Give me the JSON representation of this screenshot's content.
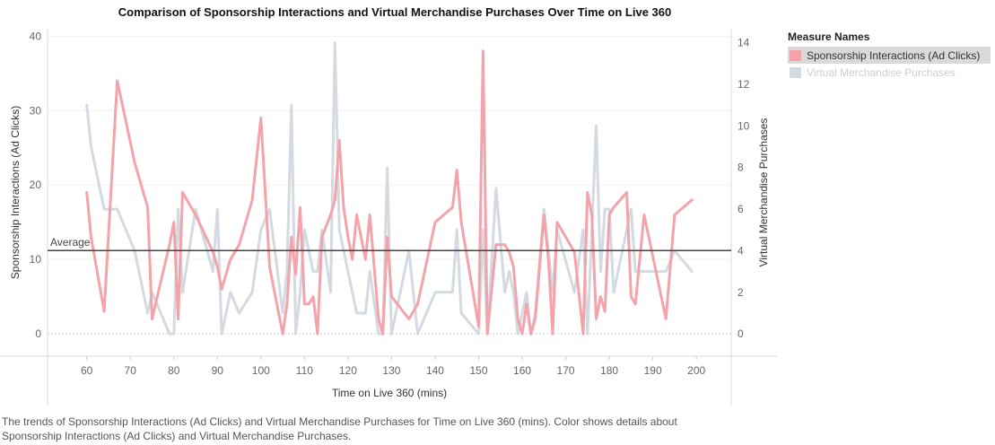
{
  "title": "Comparison of Sponsorship Interactions and Virtual Merchandise Purchases Over Time on Live 360",
  "caption": "The trends of Sponsorship Interactions (Ad Clicks) and Virtual Merchandise Purchases for Time on Live 360 (mins).  Color shows details about Sponsorship Interactions (Ad Clicks) and Virtual Merchandise Purchases.",
  "legend": {
    "title": "Measure Names",
    "items": [
      {
        "label": "Sponsorship Interactions (Ad Clicks)",
        "color": "#f4a3ab",
        "selected": true
      },
      {
        "label": "Virtual Merchandise Purchases",
        "color": "#d3dae1",
        "selected": false
      }
    ]
  },
  "chart_data": {
    "type": "line",
    "title": "Comparison of Sponsorship Interactions and Virtual Merchandise Purchases Over Time on Live 360",
    "xlabel": "Time on Live 360 (mins)",
    "ylabel": "Sponsorship Interactions (Ad Clicks)",
    "y2label": "Virtual Merchandise Purchases",
    "xlim": [
      51,
      208
    ],
    "ylim": [
      -3,
      41
    ],
    "y2lim": [
      -1.07,
      14.67
    ],
    "xticks": [
      60,
      70,
      80,
      90,
      100,
      110,
      120,
      130,
      140,
      150,
      160,
      170,
      180,
      190,
      200
    ],
    "yticks": [
      0,
      10,
      20,
      30,
      40
    ],
    "y2ticks": [
      0,
      2,
      4,
      6,
      8,
      10,
      12,
      14
    ],
    "reference_line": {
      "label": "Average",
      "axis": "y",
      "value": 11.2
    },
    "series": [
      {
        "name": "Sponsorship Interactions (Ad Clicks)",
        "axis": "left",
        "color": "#f4a3ab",
        "x": [
          60,
          61,
          64,
          67,
          71,
          74,
          75,
          79,
          80,
          81,
          82,
          85,
          89,
          90,
          91,
          93,
          95,
          98,
          100,
          102,
          105,
          106,
          107,
          108,
          109,
          110,
          111,
          112,
          113,
          114,
          116,
          117,
          118,
          119,
          120,
          121,
          122,
          124,
          125,
          127,
          128,
          129,
          130,
          134,
          136,
          140,
          144,
          145,
          146,
          150,
          151,
          152,
          154,
          156,
          157,
          158,
          159,
          160,
          161,
          162,
          163,
          165,
          166,
          167,
          168,
          172,
          174,
          175,
          176,
          177,
          178,
          179,
          180,
          181,
          184,
          185,
          186,
          188,
          193,
          195,
          199
        ],
        "values": [
          19,
          13,
          3,
          34,
          23,
          17,
          2,
          12,
          15,
          2,
          19,
          16,
          11,
          9,
          6,
          10,
          12,
          18,
          29,
          9,
          0,
          4,
          13,
          8,
          17,
          4,
          4,
          5,
          0,
          13,
          16,
          18,
          26,
          17,
          13,
          10,
          16,
          10,
          16,
          2,
          0,
          13,
          5,
          2,
          4,
          15,
          17,
          22,
          15,
          1,
          38,
          0,
          12,
          12,
          11,
          9,
          2,
          0,
          4,
          0,
          2,
          16,
          10,
          0,
          15,
          11,
          0,
          19,
          16,
          2,
          5,
          3,
          16,
          17,
          19,
          5,
          4,
          16,
          2,
          16,
          18
        ]
      },
      {
        "name": "Virtual Merchandise Purchases",
        "axis": "right",
        "color": "#d3dae1",
        "x": [
          60,
          61,
          64,
          67,
          71,
          74,
          75,
          79,
          80,
          81,
          82,
          85,
          89,
          90,
          91,
          93,
          95,
          98,
          100,
          102,
          105,
          106,
          107,
          108,
          109,
          110,
          111,
          112,
          113,
          114,
          116,
          117,
          118,
          119,
          120,
          121,
          122,
          124,
          125,
          127,
          128,
          129,
          130,
          134,
          136,
          140,
          144,
          145,
          146,
          150,
          151,
          152,
          154,
          156,
          157,
          158,
          159,
          160,
          161,
          162,
          163,
          165,
          166,
          167,
          168,
          172,
          174,
          175,
          176,
          177,
          178,
          179,
          180,
          181,
          184,
          185,
          186,
          188,
          193,
          195,
          199
        ],
        "values": [
          11,
          9,
          6,
          6,
          4,
          1,
          2,
          0,
          0,
          6,
          2,
          6,
          3,
          6,
          0,
          2,
          1,
          2,
          5,
          6,
          1,
          3,
          11,
          0,
          2,
          5,
          4,
          3,
          3,
          5,
          2,
          14,
          5,
          4,
          3,
          2,
          1,
          1,
          3,
          0,
          0,
          8,
          0,
          4,
          0,
          2,
          2,
          5,
          1,
          0,
          5,
          0,
          7,
          2,
          3,
          2,
          0,
          1,
          2,
          0,
          1,
          6,
          4,
          2,
          5,
          2,
          5,
          0,
          5,
          10,
          3,
          6,
          6,
          2,
          5,
          6,
          3,
          3,
          3,
          4,
          3
        ]
      }
    ]
  }
}
